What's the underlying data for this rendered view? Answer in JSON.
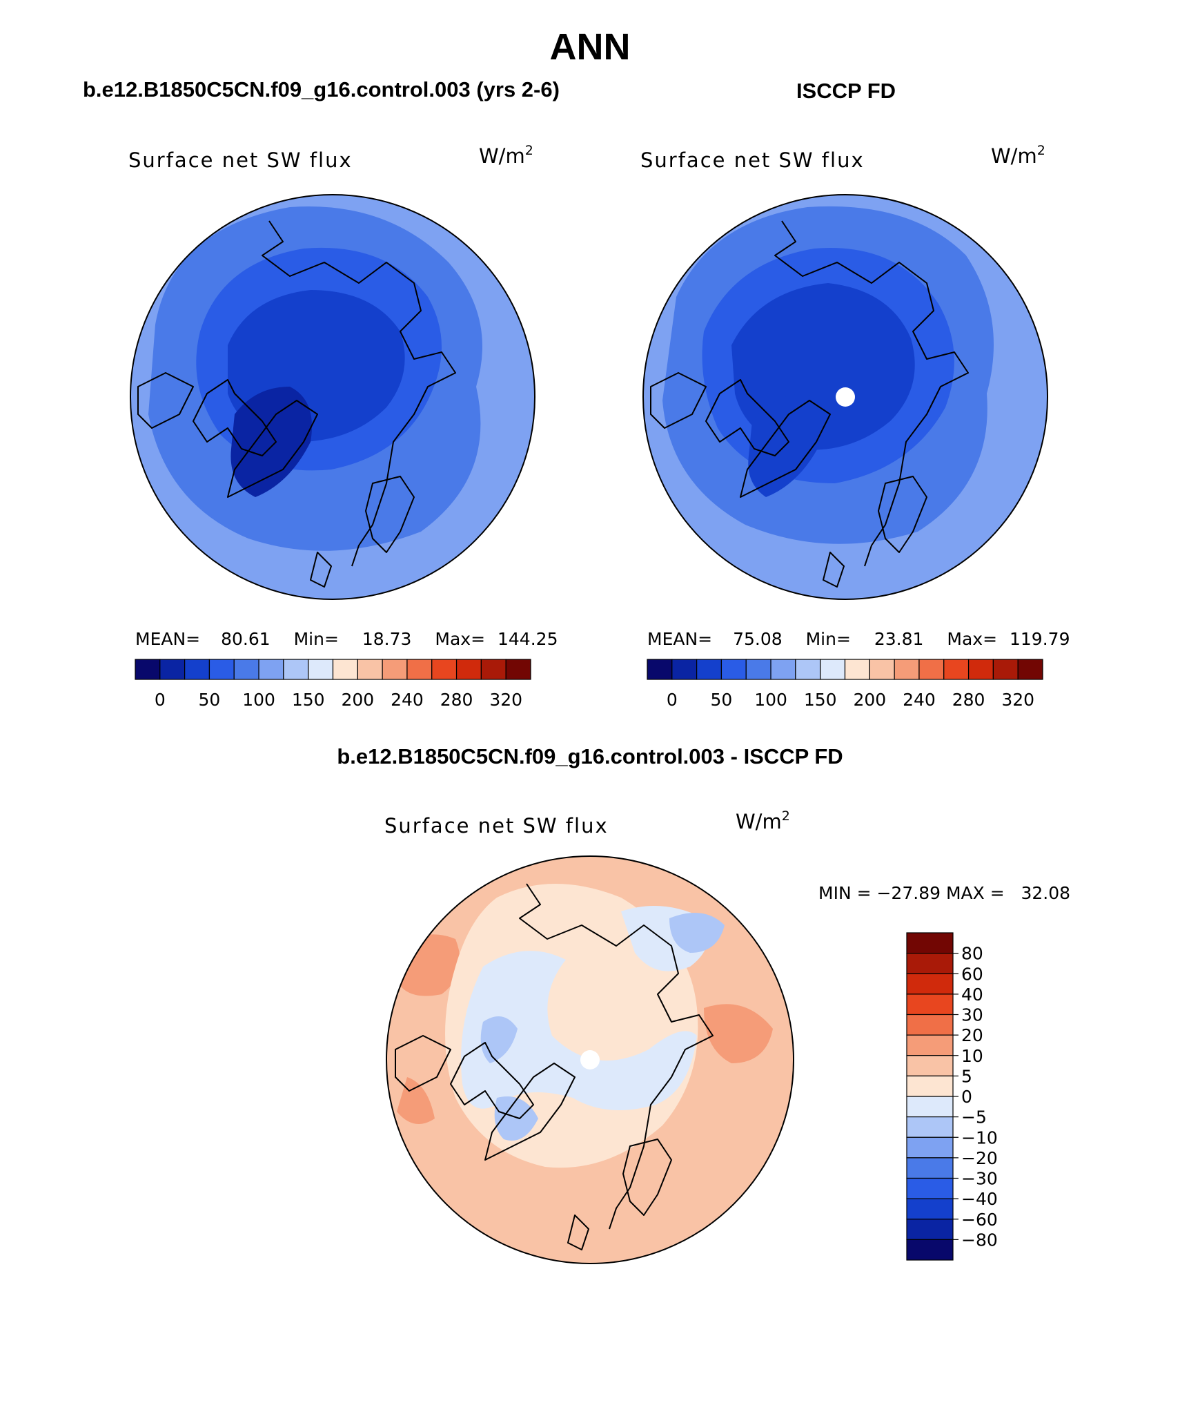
{
  "page_title": "ANN",
  "panels": [
    {
      "header": "b.e12.B1850C5CN.f09_g16.control.003 (yrs 2-6)",
      "variable": "Surface net SW flux",
      "units_base": "W/m",
      "units_exp": "2",
      "stats": {
        "mean_label": "MEAN=",
        "mean": "80.61",
        "min_label": "Min=",
        "min": "18.73",
        "max_label": "Max=",
        "max": "144.25"
      },
      "pole_hole": false,
      "theme": "model"
    },
    {
      "header": "ISCCP FD",
      "variable": "Surface net SW flux",
      "units_base": "W/m",
      "units_exp": "2",
      "stats": {
        "mean_label": "MEAN=",
        "mean": "75.08",
        "min_label": "Min=",
        "min": "23.81",
        "max_label": "Max=",
        "max": "119.79"
      },
      "pole_hole": true,
      "theme": "obs"
    }
  ],
  "abs_colorbar": {
    "colors": [
      "#08086b",
      "#0a24a3",
      "#1440cc",
      "#2a5ce6",
      "#4a7ae8",
      "#7ea2f2",
      "#adc6f7",
      "#dde9fb",
      "#fde5d2",
      "#f9c3a6",
      "#f59c78",
      "#f06f47",
      "#e8461f",
      "#d02a0c",
      "#a91a08",
      "#720603"
    ],
    "labels": [
      "0",
      "50",
      "100",
      "150",
      "200",
      "240",
      "280",
      "320"
    ]
  },
  "difference": {
    "header": "b.e12.B1850C5CN.f09_g16.control.003 - ISCCP FD",
    "variable": "Surface net SW flux",
    "units_base": "W/m",
    "units_exp": "2",
    "minmax": "MIN = −27.89 MAX =   32.08",
    "pole_hole": true,
    "colorbar": {
      "colors": [
        "#720603",
        "#a91a08",
        "#d02a0c",
        "#e8461f",
        "#f06f47",
        "#f59c78",
        "#f9c3a6",
        "#fde5d2",
        "#dde9fb",
        "#adc6f7",
        "#7ea2f2",
        "#4a7ae8",
        "#2a5ce6",
        "#1440cc",
        "#0a24a3",
        "#08086b"
      ],
      "labels": [
        "80",
        "60",
        "40",
        "30",
        "20",
        "10",
        "5",
        "0",
        "−5",
        "−10",
        "−20",
        "−30",
        "−40",
        "−60",
        "−80"
      ]
    }
  },
  "map_colors": {
    "model": {
      "outer": "#7ea2f2",
      "mid": "#4a7ae8",
      "inner": "#2a5ce6",
      "core": "#1440cc",
      "deep": "#0a24a3"
    },
    "obs": {
      "outer": "#7ea2f2",
      "mid": "#4a7ae8",
      "inner": "#2a5ce6",
      "core": "#1440cc",
      "deep": "#1440cc"
    },
    "diff": {
      "outer": "#f9c3a6",
      "mid": "#fde5d2",
      "inner": "#dde9fb",
      "core": "#adc6f7",
      "deep": "#f59c78"
    }
  },
  "coastline_color": "#000000"
}
